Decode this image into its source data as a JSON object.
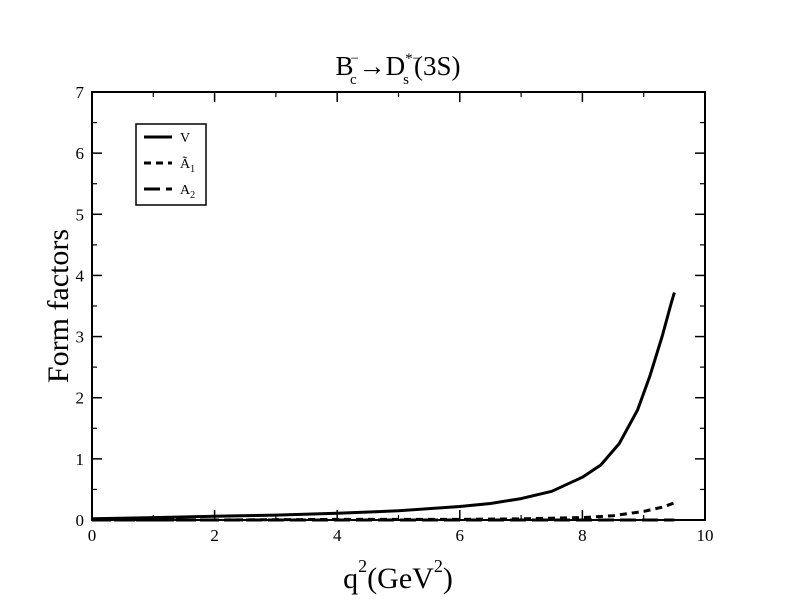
{
  "chart_data": {
    "type": "line",
    "title": {
      "b": "B",
      "b_sub": "c",
      "b_sup": "−",
      "arrow": "→",
      "d": "D",
      "d_sub": "s",
      "d_sup": "*−",
      "state": "(3S)"
    },
    "xlabel": {
      "q": "q",
      "q_exp": "2",
      "unit_open": "(GeV",
      "unit_exp": "2",
      "unit_close": ")"
    },
    "ylabel": "Form factors",
    "xlim": [
      0,
      10
    ],
    "ylim": [
      0,
      7
    ],
    "x_ticks": [
      "0",
      "2",
      "4",
      "6",
      "8",
      "10"
    ],
    "y_ticks": [
      "0",
      "1",
      "2",
      "3",
      "4",
      "5",
      "6",
      "7"
    ],
    "grid": false,
    "legend_position": "top-left",
    "series": [
      {
        "name": "V",
        "legend": {
          "main": "V",
          "sub": ""
        },
        "line_style": "solid",
        "x": [
          0,
          1,
          2,
          3,
          4,
          5,
          6,
          6.5,
          7,
          7.5,
          8,
          8.3,
          8.6,
          8.9,
          9.1,
          9.3,
          9.45,
          9.5
        ],
        "y": [
          0.02,
          0.04,
          0.06,
          0.08,
          0.11,
          0.15,
          0.22,
          0.27,
          0.35,
          0.47,
          0.7,
          0.9,
          1.25,
          1.8,
          2.35,
          3.0,
          3.55,
          3.72
        ]
      },
      {
        "name": "Ã1",
        "legend": {
          "main": "Ã",
          "sub": "1"
        },
        "line_style": "dashed",
        "x": [
          0,
          2,
          4,
          6,
          7,
          8,
          8.5,
          9,
          9.3,
          9.5
        ],
        "y": [
          0.0,
          0.0,
          0.01,
          0.01,
          0.02,
          0.04,
          0.07,
          0.14,
          0.21,
          0.28
        ]
      },
      {
        "name": "A2",
        "legend": {
          "main": "A",
          "sub": "2"
        },
        "line_style": "long-dash",
        "x": [
          0,
          2,
          4,
          6,
          8,
          9,
          9.5
        ],
        "y": [
          0.0,
          0.0,
          0.0,
          0.0,
          0.0,
          0.0,
          0.0
        ]
      }
    ]
  }
}
